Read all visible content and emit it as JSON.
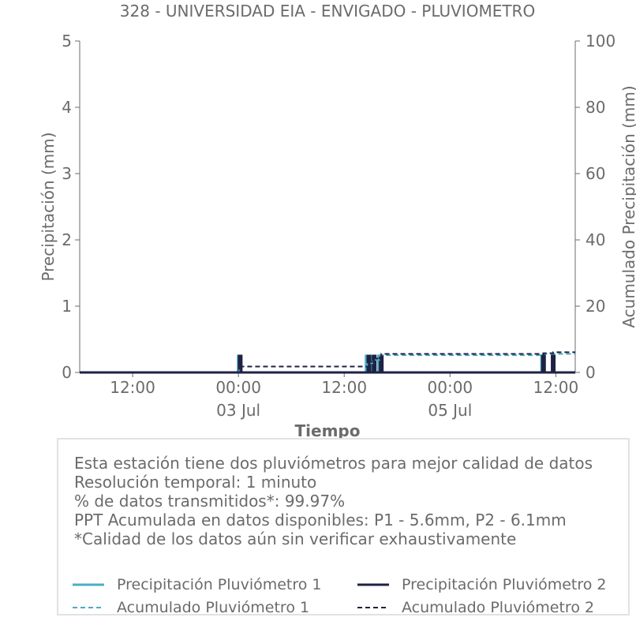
{
  "chart_data": {
    "type": "line",
    "title": "328 - UNIVERSIDAD EIA - ENVIGADO - PLUVIOMETRO",
    "xlabel": "Tiempo",
    "ylabel": "Precipitación (mm)",
    "ylabel_right": "Acumulado Precipitación (mm)",
    "x_ticks": [
      {
        "t": 12,
        "label": "12:00",
        "sublabel": ""
      },
      {
        "t": 24,
        "label": "00:00",
        "sublabel": "03 Jul"
      },
      {
        "t": 36,
        "label": "12:00",
        "sublabel": ""
      },
      {
        "t": 48,
        "label": "00:00",
        "sublabel": "05 Jul"
      },
      {
        "t": 60,
        "label": "12:00",
        "sublabel": ""
      }
    ],
    "xlim": [
      6,
      62.2
    ],
    "ylim": [
      0,
      5
    ],
    "ylim_right": [
      0,
      100
    ],
    "y_ticks": [
      "0",
      "1",
      "2",
      "3",
      "4",
      "5"
    ],
    "y_ticks_right": [
      "0",
      "20",
      "40",
      "60",
      "80",
      "100"
    ],
    "series": [
      {
        "name": "Precipitación Pluviómetro 1",
        "style": "solid",
        "axis": "left",
        "color": "#4bacc6",
        "events": [
          {
            "t": 24.1,
            "v": 0.25
          },
          {
            "t": 38.6,
            "v": 0.25
          },
          {
            "t": 39.2,
            "v": 0.25
          },
          {
            "t": 40.0,
            "v": 0.25
          },
          {
            "t": 58.5,
            "v": 0.25
          }
        ]
      },
      {
        "name": "Precipitación Pluviómetro 2",
        "style": "solid",
        "axis": "left",
        "color": "#1f2244",
        "events": [
          {
            "t": 24.2,
            "v": 0.25
          },
          {
            "t": 38.8,
            "v": 0.25
          },
          {
            "t": 39.4,
            "v": 0.25
          },
          {
            "t": 40.2,
            "v": 0.25
          },
          {
            "t": 58.6,
            "v": 0.25
          },
          {
            "t": 59.7,
            "v": 0.25
          }
        ]
      },
      {
        "name": "Acumulado Pluviómetro 1",
        "style": "dashed",
        "axis": "right",
        "color": "#4bacc6",
        "steps": [
          {
            "t": 6,
            "v": 0
          },
          {
            "t": 24.1,
            "v": 1.8
          },
          {
            "t": 38.6,
            "v": 2.8
          },
          {
            "t": 39.2,
            "v": 3.8
          },
          {
            "t": 40.0,
            "v": 5.2
          },
          {
            "t": 58.5,
            "v": 5.6
          },
          {
            "t": 62.2,
            "v": 5.6
          }
        ]
      },
      {
        "name": "Acumulado Pluviómetro 2",
        "style": "dashed",
        "axis": "right",
        "color": "#1f2244",
        "steps": [
          {
            "t": 6,
            "v": 0
          },
          {
            "t": 24.2,
            "v": 1.8
          },
          {
            "t": 38.8,
            "v": 3.2
          },
          {
            "t": 39.4,
            "v": 4.2
          },
          {
            "t": 40.2,
            "v": 5.6
          },
          {
            "t": 58.6,
            "v": 5.8
          },
          {
            "t": 59.7,
            "v": 6.1
          },
          {
            "t": 62.2,
            "v": 6.1
          }
        ]
      }
    ],
    "grid": false,
    "legend_position": "bottom"
  },
  "info": {
    "lines": [
      "Esta estación tiene dos pluviómetros para mejor calidad de datos",
      "Resolución temporal: 1 minuto",
      "% de datos transmitidos*: 99.97%",
      "PPT Acumulada en datos disponibles: P1 - 5.6mm, P2 - 6.1mm",
      "*Calidad de los datos aún sin verificar exhaustivamente"
    ]
  },
  "legend": {
    "items": [
      {
        "label": "Precipitación Pluviómetro 1",
        "color": "#4bacc6",
        "style": "solid"
      },
      {
        "label": "Precipitación Pluviómetro 2",
        "color": "#1f2244",
        "style": "solid"
      },
      {
        "label": "Acumulado Pluviómetro 1",
        "color": "#4bacc6",
        "style": "dashed"
      },
      {
        "label": "Acumulado Pluviómetro 2",
        "color": "#1f2244",
        "style": "dashed"
      }
    ]
  }
}
